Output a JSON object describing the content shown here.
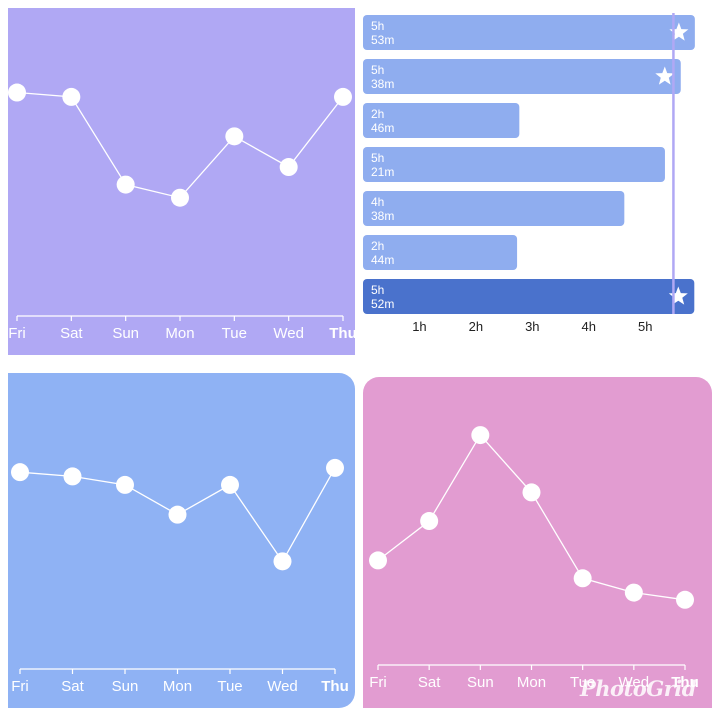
{
  "colors": {
    "panel1_bg": "#b0a8f4",
    "panel2_bar": "#8fadef",
    "panel2_bar_highlight": "#4a72cc",
    "panel2_marker_line": "#b0a8f4",
    "panel3_bg": "#8fb2f4",
    "panel4_bg": "#e29cd1",
    "line_point": "#ffffff"
  },
  "chart_data": [
    {
      "type": "line",
      "categories": [
        "Fri",
        "Sat",
        "Sun",
        "Mon",
        "Tue",
        "Wed",
        "Thu"
      ],
      "bold_category": "Thu",
      "values": [
        5.6,
        5.5,
        3.5,
        3.2,
        4.6,
        3.9,
        5.5
      ],
      "ylim": [
        0,
        7.3
      ],
      "grid": false
    },
    {
      "type": "bar",
      "orientation": "horizontal",
      "categories": [
        "5h 53m",
        "5h 38m",
        "2h 46m",
        "5h 21m",
        "4h 38m",
        "2h 44m",
        "5h 52m"
      ],
      "bars": [
        {
          "h": "5h",
          "m": "53m",
          "value": 5.88,
          "star": true,
          "highlight": false
        },
        {
          "h": "5h",
          "m": "38m",
          "value": 5.63,
          "star": true,
          "highlight": false
        },
        {
          "h": "2h",
          "m": "46m",
          "value": 2.77,
          "star": false,
          "highlight": false
        },
        {
          "h": "5h",
          "m": "21m",
          "value": 5.35,
          "star": false,
          "highlight": false
        },
        {
          "h": "4h",
          "m": "38m",
          "value": 4.63,
          "star": false,
          "highlight": false
        },
        {
          "h": "2h",
          "m": "44m",
          "value": 2.73,
          "star": false,
          "highlight": false
        },
        {
          "h": "5h",
          "m": "52m",
          "value": 5.87,
          "star": true,
          "highlight": true
        }
      ],
      "x_ticks": [
        "1h",
        "2h",
        "3h",
        "4h",
        "5h"
      ],
      "x_tick_values": [
        1,
        2,
        3,
        4,
        5
      ],
      "target_line_value": 5.5,
      "xlim": [
        0,
        5.9
      ]
    },
    {
      "type": "line",
      "categories": [
        "Fri",
        "Sat",
        "Sun",
        "Mon",
        "Tue",
        "Wed",
        "Thu"
      ],
      "bold_category": "Thu",
      "values": [
        5.2,
        5.1,
        4.9,
        4.2,
        4.9,
        3.1,
        5.3
      ],
      "ylim": [
        0,
        7.3
      ],
      "grid": false
    },
    {
      "type": "line",
      "categories": [
        "Fri",
        "Sat",
        "Sun",
        "Mon",
        "Tue",
        "Wed",
        "Thu"
      ],
      "bold_category": "Thu",
      "values": [
        2.1,
        3.2,
        5.6,
        4.0,
        1.6,
        1.2,
        1.0
      ],
      "ylim": [
        -1.8,
        7.0
      ],
      "grid": false
    }
  ],
  "watermark": "PhotoGrid"
}
